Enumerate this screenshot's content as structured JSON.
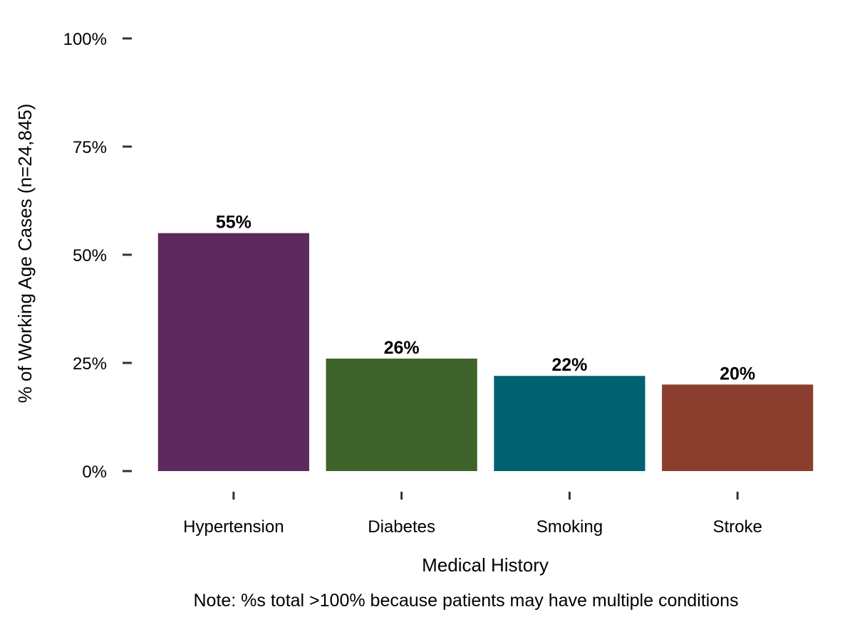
{
  "chart_data": {
    "type": "bar",
    "categories": [
      "Hypertension",
      "Diabetes",
      "Smoking",
      "Stroke"
    ],
    "values": [
      55,
      26,
      22,
      20
    ],
    "data_labels": [
      "55%",
      "26%",
      "22%",
      "20%"
    ],
    "colors": [
      "#5c2a5c",
      "#3e632b",
      "#00626f",
      "#8c3e2e"
    ],
    "title": "",
    "xlabel": "Medical History",
    "ylabel": "% of Working Age Cases (n=24,845)",
    "ylim": [
      0,
      100
    ],
    "yticks": [
      0,
      25,
      50,
      75,
      100
    ],
    "ytick_labels": [
      "0%",
      "25%",
      "50%",
      "75%",
      "100%"
    ],
    "grid": false,
    "legend": "none",
    "note": "Note: %s total >100% because patients may have multiple conditions",
    "tick_color": "#333333"
  }
}
